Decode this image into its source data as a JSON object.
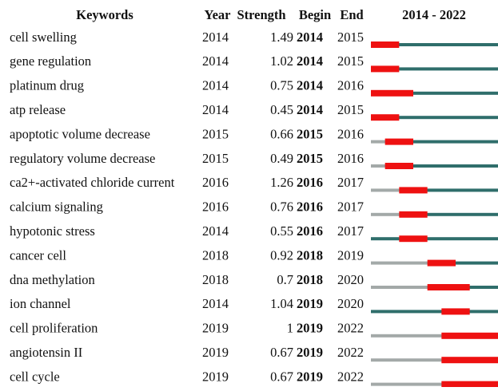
{
  "header": {
    "keyword": "Keywords",
    "year": "Year",
    "strength": "Strength",
    "begin": "Begin",
    "end": "End",
    "timeline": "2014 - 2022"
  },
  "timeline": {
    "start": 2014,
    "end": 2022
  },
  "rows": [
    {
      "keyword": "cell swelling",
      "year": 2014,
      "strength": 1.49,
      "begin": 2014,
      "end": 2015
    },
    {
      "keyword": "gene regulation",
      "year": 2014,
      "strength": 1.02,
      "begin": 2014,
      "end": 2015
    },
    {
      "keyword": "platinum drug",
      "year": 2014,
      "strength": 0.75,
      "begin": 2014,
      "end": 2016
    },
    {
      "keyword": "atp release",
      "year": 2014,
      "strength": 0.45,
      "begin": 2014,
      "end": 2015
    },
    {
      "keyword": "apoptotic volume decrease",
      "year": 2015,
      "strength": 0.66,
      "begin": 2015,
      "end": 2016
    },
    {
      "keyword": "regulatory volume decrease",
      "year": 2015,
      "strength": 0.49,
      "begin": 2015,
      "end": 2016
    },
    {
      "keyword": "ca2+-activated chloride current",
      "year": 2016,
      "strength": 1.26,
      "begin": 2016,
      "end": 2017
    },
    {
      "keyword": "calcium signaling",
      "year": 2016,
      "strength": 0.76,
      "begin": 2016,
      "end": 2017
    },
    {
      "keyword": "hypotonic stress",
      "year": 2014,
      "strength": 0.55,
      "begin": 2016,
      "end": 2017
    },
    {
      "keyword": "cancer cell",
      "year": 2018,
      "strength": 0.92,
      "begin": 2018,
      "end": 2019
    },
    {
      "keyword": "dna methylation",
      "year": 2018,
      "strength": 0.7,
      "begin": 2018,
      "end": 2020
    },
    {
      "keyword": "ion channel",
      "year": 2014,
      "strength": 1.04,
      "begin": 2019,
      "end": 2020
    },
    {
      "keyword": "cell proliferation",
      "year": 2019,
      "strength": 1,
      "begin": 2019,
      "end": 2022
    },
    {
      "keyword": "angiotensin II",
      "year": 2019,
      "strength": 0.67,
      "begin": 2019,
      "end": 2022
    },
    {
      "keyword": "cell cycle",
      "year": 2019,
      "strength": 0.67,
      "begin": 2019,
      "end": 2022
    }
  ]
}
